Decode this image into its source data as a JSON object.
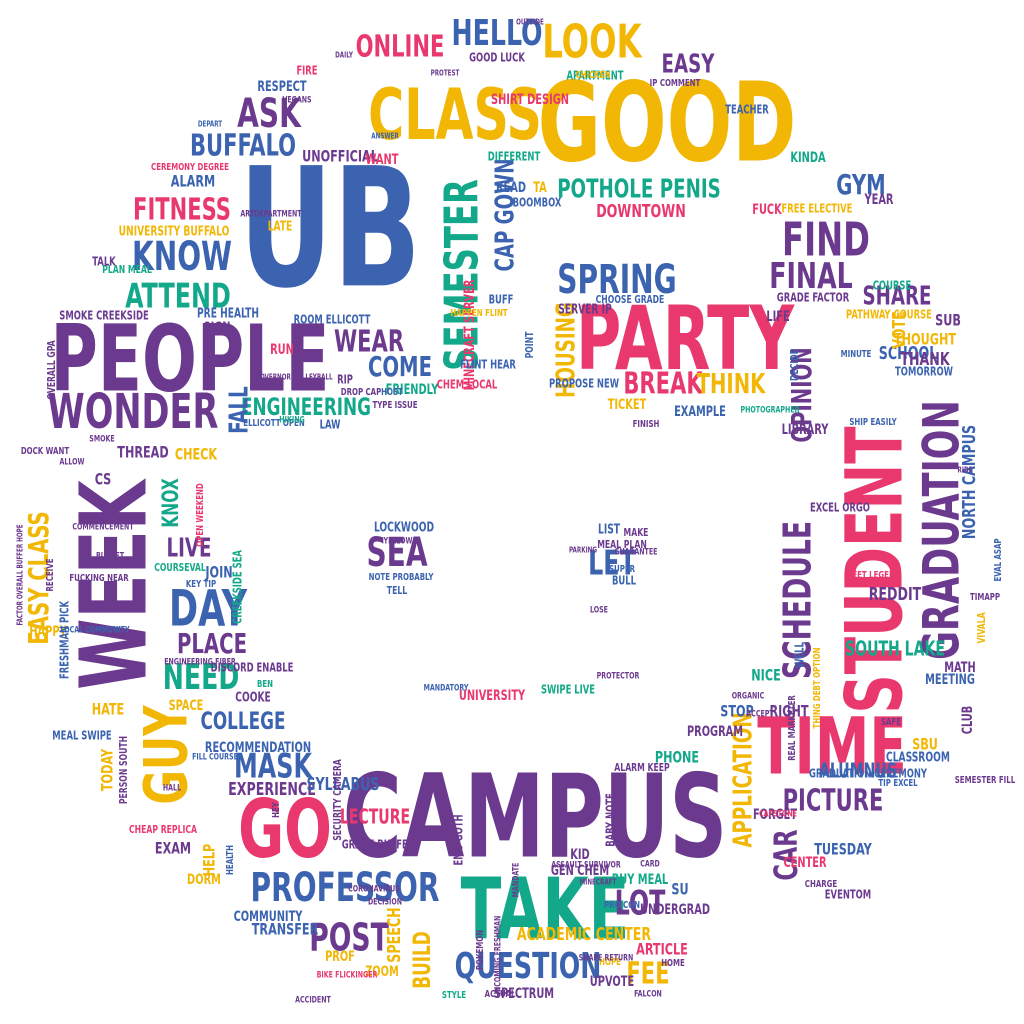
{
  "colors": {
    "purple": "#6b3a8e",
    "blue": "#3b63b0",
    "yellow": "#f2b705",
    "pink": "#e8386d",
    "green": "#13a88a"
  },
  "words": [
    {
      "text": "CAMPUS",
      "color": "purple"
    },
    {
      "text": "UB",
      "color": "blue"
    },
    {
      "text": "GOOD",
      "color": "yellow"
    },
    {
      "text": "STUDENT",
      "color": "pink"
    },
    {
      "text": "PEOPLE",
      "color": "purple"
    },
    {
      "text": "PARTY",
      "color": "pink"
    },
    {
      "text": "WEEK",
      "color": "purple"
    },
    {
      "text": "TAKE",
      "color": "green"
    },
    {
      "text": "CLASS",
      "color": "yellow"
    },
    {
      "text": "TIME",
      "color": "pink"
    },
    {
      "text": "GO",
      "color": "pink"
    },
    {
      "text": "GUY",
      "color": "yellow"
    },
    {
      "text": "SEMESTER",
      "color": "green"
    },
    {
      "text": "GRADUATION",
      "color": "purple"
    },
    {
      "text": "WONDER",
      "color": "purple"
    },
    {
      "text": "PROFESSOR",
      "color": "blue"
    },
    {
      "text": "LOOK",
      "color": "yellow"
    },
    {
      "text": "DAY",
      "color": "blue"
    },
    {
      "text": "SCHEDULE",
      "color": "purple"
    },
    {
      "text": "HELLO",
      "color": "blue"
    },
    {
      "text": "ONLINE",
      "color": "pink"
    },
    {
      "text": "FIND",
      "color": "purple"
    },
    {
      "text": "FINAL",
      "color": "purple"
    },
    {
      "text": "SPRING",
      "color": "blue"
    },
    {
      "text": "POTHOLE PENIS",
      "color": "green"
    },
    {
      "text": "KNOW",
      "color": "blue"
    },
    {
      "text": "ATTEND",
      "color": "green"
    },
    {
      "text": "FITNESS",
      "color": "pink"
    },
    {
      "text": "BUFFALO",
      "color": "blue"
    },
    {
      "text": "ASK",
      "color": "purple"
    },
    {
      "text": "QUESTION",
      "color": "blue"
    },
    {
      "text": "POST",
      "color": "purple"
    },
    {
      "text": "MASK",
      "color": "blue"
    },
    {
      "text": "NEED",
      "color": "green"
    },
    {
      "text": "PLACE",
      "color": "purple"
    },
    {
      "text": "APPLICATION",
      "color": "yellow"
    },
    {
      "text": "PICTURE",
      "color": "purple"
    },
    {
      "text": "CAR",
      "color": "purple"
    },
    {
      "text": "FEE",
      "color": "yellow"
    },
    {
      "text": "LOT",
      "color": "purple"
    },
    {
      "text": "SEA",
      "color": "purple"
    },
    {
      "text": "LET",
      "color": "blue"
    },
    {
      "text": "HOUSING",
      "color": "yellow"
    },
    {
      "text": "BREAK",
      "color": "pink"
    },
    {
      "text": "THINK",
      "color": "yellow"
    },
    {
      "text": "OPINION",
      "color": "purple"
    },
    {
      "text": "WEAR",
      "color": "purple"
    },
    {
      "text": "COME",
      "color": "blue"
    },
    {
      "text": "ENGINEERING",
      "color": "green"
    },
    {
      "text": "FALL",
      "color": "blue"
    },
    {
      "text": "EASY CLASS",
      "color": "yellow"
    },
    {
      "text": "KNOX",
      "color": "green"
    },
    {
      "text": "LIVE",
      "color": "purple"
    },
    {
      "text": "COLLEGE",
      "color": "blue"
    },
    {
      "text": "EXPERIENCE",
      "color": "purple"
    },
    {
      "text": "SYLLABUS",
      "color": "blue"
    },
    {
      "text": "LECTURE",
      "color": "pink"
    },
    {
      "text": "BUILD",
      "color": "yellow"
    },
    {
      "text": "SPEECH",
      "color": "yellow"
    },
    {
      "text": "ACADEMIC CENTER",
      "color": "yellow"
    },
    {
      "text": "UNIVERSITY",
      "color": "pink"
    },
    {
      "text": "SHARE",
      "color": "purple"
    },
    {
      "text": "SCHOOL",
      "color": "blue"
    },
    {
      "text": "GYM",
      "color": "blue"
    },
    {
      "text": "EASY",
      "color": "purple"
    },
    {
      "text": "CAP GOWN",
      "color": "blue"
    },
    {
      "text": "DOWNTOWN",
      "color": "pink"
    },
    {
      "text": "ALUMNUS",
      "color": "blue"
    },
    {
      "text": "SOUTH LAKE",
      "color": "green"
    },
    {
      "text": "NORTH CAMPUS",
      "color": "blue"
    },
    {
      "text": "REDDIT",
      "color": "purple"
    },
    {
      "text": "VOTE",
      "color": "yellow"
    },
    {
      "text": "SUB",
      "color": "purple"
    },
    {
      "text": "THANK",
      "color": "purple"
    },
    {
      "text": "THOUGHT",
      "color": "yellow"
    },
    {
      "text": "TUESDAY",
      "color": "blue"
    },
    {
      "text": "CENTER",
      "color": "pink"
    },
    {
      "text": "PHONE",
      "color": "green"
    },
    {
      "text": "STOP",
      "color": "blue"
    },
    {
      "text": "RIGHT",
      "color": "purple"
    },
    {
      "text": "NICE",
      "color": "green"
    },
    {
      "text": "PROGRAM",
      "color": "purple"
    },
    {
      "text": "CHECK",
      "color": "yellow"
    },
    {
      "text": "THREAD",
      "color": "purple"
    },
    {
      "text": "JOIN",
      "color": "blue"
    },
    {
      "text": "CS",
      "color": "purple"
    },
    {
      "text": "HAPPY",
      "color": "yellow"
    },
    {
      "text": "HATE",
      "color": "yellow"
    },
    {
      "text": "TODAY",
      "color": "yellow"
    },
    {
      "text": "EXAM",
      "color": "purple"
    },
    {
      "text": "HELP",
      "color": "yellow"
    },
    {
      "text": "DORM",
      "color": "yellow"
    },
    {
      "text": "COMMUNITY",
      "color": "blue"
    },
    {
      "text": "TRANSFER",
      "color": "blue"
    },
    {
      "text": "ZOOM",
      "color": "yellow"
    },
    {
      "text": "PROF",
      "color": "yellow"
    },
    {
      "text": "SPECTRUM",
      "color": "purple"
    },
    {
      "text": "UPVOTE",
      "color": "purple"
    },
    {
      "text": "ARTICLE",
      "color": "pink"
    },
    {
      "text": "SU",
      "color": "blue"
    },
    {
      "text": "UNDERGRAD",
      "color": "purple"
    },
    {
      "text": "BUY MEAL",
      "color": "green"
    },
    {
      "text": "GEN CHEM",
      "color": "purple"
    },
    {
      "text": "KID",
      "color": "purple"
    },
    {
      "text": "ALARM",
      "color": "blue"
    },
    {
      "text": "UNIVERSITY BUFFALO",
      "color": "yellow"
    },
    {
      "text": "UNOFFICIAL",
      "color": "purple"
    },
    {
      "text": "WANT",
      "color": "pink"
    },
    {
      "text": "RESPECT",
      "color": "blue"
    },
    {
      "text": "RUN",
      "color": "pink"
    },
    {
      "text": "SIGN",
      "color": "purple"
    },
    {
      "text": "PRE HEALTH",
      "color": "blue"
    },
    {
      "text": "MINECRAFT SERVER",
      "color": "pink"
    },
    {
      "text": "FRIENDLY",
      "color": "green"
    },
    {
      "text": "SERVER IP",
      "color": "purple"
    },
    {
      "text": "CHOOSE GRADE",
      "color": "blue"
    },
    {
      "text": "TICKET",
      "color": "yellow"
    },
    {
      "text": "EXAMPLE",
      "color": "blue"
    },
    {
      "text": "LIBRARY",
      "color": "purple"
    },
    {
      "text": "MEETING",
      "color": "blue"
    },
    {
      "text": "MATH",
      "color": "purple"
    },
    {
      "text": "CLUB",
      "color": "purple"
    },
    {
      "text": "SBU",
      "color": "yellow"
    },
    {
      "text": "FORGET",
      "color": "purple"
    },
    {
      "text": "RECOMMENDATION",
      "color": "blue"
    },
    {
      "text": "LOCKWOOD",
      "color": "blue"
    },
    {
      "text": "LIST",
      "color": "blue"
    },
    {
      "text": "MAKE",
      "color": "purple"
    },
    {
      "text": "MEAL PLAN",
      "color": "purple"
    },
    {
      "text": "YELLOW",
      "color": "purple"
    },
    {
      "text": "SUPER",
      "color": "blue"
    },
    {
      "text": "BULL",
      "color": "blue"
    },
    {
      "text": "TELL",
      "color": "blue"
    },
    {
      "text": "SWIPE LIVE",
      "color": "green"
    },
    {
      "text": "BUFF",
      "color": "blue"
    },
    {
      "text": "READ",
      "color": "blue"
    },
    {
      "text": "BOOMBOX",
      "color": "blue"
    },
    {
      "text": "DIFFERENT",
      "color": "green"
    },
    {
      "text": "EXCEL ORGO",
      "color": "purple"
    },
    {
      "text": "TA",
      "color": "yellow"
    },
    {
      "text": "KINDA",
      "color": "green"
    },
    {
      "text": "TEACHER",
      "color": "blue"
    },
    {
      "text": "APARTMENT",
      "color": "green"
    },
    {
      "text": "SHIRT DESIGN",
      "color": "pink"
    },
    {
      "text": "FIRE",
      "color": "pink"
    },
    {
      "text": "GOOD LUCK",
      "color": "purple"
    },
    {
      "text": "CHICKEN",
      "color": "yellow"
    },
    {
      "text": "IP COMMENT",
      "color": "purple"
    },
    {
      "text": "FUCK",
      "color": "pink"
    },
    {
      "text": "FREE ELECTIVE",
      "color": "yellow"
    },
    {
      "text": "YEAR",
      "color": "purple"
    },
    {
      "text": "LIFE",
      "color": "purple"
    },
    {
      "text": "PATHWAY COURSE",
      "color": "yellow"
    },
    {
      "text": "TOMORROW",
      "color": "blue"
    },
    {
      "text": "COURSE",
      "color": "green"
    },
    {
      "text": "MINUTE",
      "color": "blue"
    },
    {
      "text": "GRADE FACTOR",
      "color": "purple"
    },
    {
      "text": "LAW",
      "color": "blue"
    },
    {
      "text": "DAILY",
      "color": "purple"
    },
    {
      "text": "DEPART",
      "color": "blue"
    },
    {
      "text": "OUTSIDE",
      "color": "purple"
    },
    {
      "text": "CEREMONY DEGREE",
      "color": "pink"
    },
    {
      "text": "LATE",
      "color": "yellow"
    },
    {
      "text": "SMOKE CREEKSIDE",
      "color": "purple"
    },
    {
      "text": "PLAN MEAL",
      "color": "green"
    },
    {
      "text": "TALK",
      "color": "purple"
    },
    {
      "text": "ROOM ELLICOTT",
      "color": "blue"
    },
    {
      "text": "OVERALL GPA",
      "color": "purple"
    },
    {
      "text": "RIP",
      "color": "purple"
    },
    {
      "text": "CHEM LOCAL",
      "color": "pink"
    },
    {
      "text": "DOCK WANT",
      "color": "purple"
    },
    {
      "text": "FRESHMAN PICK",
      "color": "blue"
    },
    {
      "text": "MEAL SWIPE",
      "color": "blue"
    },
    {
      "text": "PERSON SOUTH",
      "color": "purple"
    },
    {
      "text": "CHEAP REPLICA",
      "color": "pink"
    },
    {
      "text": "CREEKSIDE SEA",
      "color": "green"
    },
    {
      "text": "OPEN WEEKEND",
      "color": "pink"
    },
    {
      "text": "COURSEVAL",
      "color": "green"
    },
    {
      "text": "KEY TIP",
      "color": "blue"
    },
    {
      "text": "FUCKING NEAR",
      "color": "purple"
    },
    {
      "text": "DISCORD ENABLE",
      "color": "purple"
    },
    {
      "text": "BEN",
      "color": "green"
    },
    {
      "text": "COOKE",
      "color": "purple"
    },
    {
      "text": "SPACE",
      "color": "yellow"
    },
    {
      "text": "HALL",
      "color": "purple"
    },
    {
      "text": "SECURITY CAMERA",
      "color": "purple"
    },
    {
      "text": "GRADE BUFFER",
      "color": "purple"
    },
    {
      "text": "EMO GOTH",
      "color": "purple"
    },
    {
      "text": "BABY NOTE",
      "color": "purple"
    },
    {
      "text": "ALARM KEEP",
      "color": "purple"
    },
    {
      "text": "GRADUATION CEREMONY",
      "color": "blue"
    },
    {
      "text": "TIP EXCEL",
      "color": "blue"
    },
    {
      "text": "CHARGE",
      "color": "purple"
    },
    {
      "text": "EVENTOM",
      "color": "purple"
    },
    {
      "text": "SAFE",
      "color": "purple"
    },
    {
      "text": "CLASSROOM",
      "color": "blue"
    },
    {
      "text": "WELL",
      "color": "blue"
    },
    {
      "text": "MEET LEGEND",
      "color": "pink"
    },
    {
      "text": "THING DEBT OPTION",
      "color": "yellow"
    },
    {
      "text": "SEMESTER FILL",
      "color": "purple"
    },
    {
      "text": "VIVALA",
      "color": "yellow"
    },
    {
      "text": "EVAL ASAP",
      "color": "blue"
    },
    {
      "text": "NOTE PROBABLY",
      "color": "blue"
    },
    {
      "text": "HAPPEN FLINT",
      "color": "yellow"
    },
    {
      "text": "FLINT HEAR",
      "color": "blue"
    },
    {
      "text": "POINT",
      "color": "blue"
    },
    {
      "text": "PROPOSE NEW",
      "color": "blue"
    },
    {
      "text": "FINISH",
      "color": "purple"
    },
    {
      "text": "DECIDE",
      "color": "blue"
    },
    {
      "text": "ELLICOTT OPEN",
      "color": "blue"
    },
    {
      "text": "HIKING",
      "color": "green"
    },
    {
      "text": "DROP CAP",
      "color": "purple"
    },
    {
      "text": "HOST",
      "color": "blue"
    },
    {
      "text": "TYPE ISSUE",
      "color": "purple"
    },
    {
      "text": "HEALTH",
      "color": "blue"
    },
    {
      "text": "LOCAL COMMUNITY",
      "color": "blue"
    },
    {
      "text": "BUCKET",
      "color": "purple"
    },
    {
      "text": "COMMENCEMENT",
      "color": "purple"
    },
    {
      "text": "MANDATORY",
      "color": "blue"
    },
    {
      "text": "PROTECTOR",
      "color": "purple"
    },
    {
      "text": "MANDATE",
      "color": "purple"
    },
    {
      "text": "ASSAULT SURVIVOR",
      "color": "purple"
    },
    {
      "text": "MINECRAFT",
      "color": "purple"
    },
    {
      "text": "CARD",
      "color": "purple"
    },
    {
      "text": "PRO CON",
      "color": "blue"
    },
    {
      "text": "STYLE",
      "color": "green"
    },
    {
      "text": "ACTUAL",
      "color": "purple"
    },
    {
      "text": "HOPE",
      "color": "yellow"
    },
    {
      "text": "HOME",
      "color": "purple"
    },
    {
      "text": "FALCON",
      "color": "purple"
    },
    {
      "text": "REAL MARKETER",
      "color": "purple"
    },
    {
      "text": "CAPSTONE",
      "color": "pink"
    },
    {
      "text": "ACCEPT",
      "color": "purple"
    },
    {
      "text": "ORGANIC",
      "color": "purple"
    },
    {
      "text": "TIMAPP",
      "color": "purple"
    },
    {
      "text": "SHIP EASILY",
      "color": "blue"
    },
    {
      "text": "PHOTOGRAPHER",
      "color": "green"
    },
    {
      "text": "GUARANTEE",
      "color": "purple"
    },
    {
      "text": "PARKING",
      "color": "purple"
    },
    {
      "text": "LOSE",
      "color": "purple"
    },
    {
      "text": "DECISION",
      "color": "purple"
    },
    {
      "text": "SHAPE RETURN",
      "color": "purple"
    },
    {
      "text": "POKEMON",
      "color": "purple"
    },
    {
      "text": "INCOMING FRESHMAN",
      "color": "purple"
    },
    {
      "text": "BIKE FLICKINGER",
      "color": "pink"
    },
    {
      "text": "ACCIDENT",
      "color": "purple"
    },
    {
      "text": "HEY",
      "color": "purple"
    },
    {
      "text": "FILL COURSE",
      "color": "blue"
    },
    {
      "text": "CORONAVIRUS",
      "color": "purple"
    },
    {
      "text": "VEGANS",
      "color": "purple"
    },
    {
      "text": "ARTDEPARTMENT",
      "color": "purple"
    },
    {
      "text": "SMOKE",
      "color": "purple"
    },
    {
      "text": "ALLOW",
      "color": "purple"
    },
    {
      "text": "ANSWER",
      "color": "blue"
    },
    {
      "text": "PAY",
      "color": "purple"
    },
    {
      "text": "RIDE",
      "color": "purple"
    },
    {
      "text": "RECEIVE",
      "color": "purple"
    },
    {
      "text": "FACTOR OVERALL BUFFER HOPE",
      "color": "purple"
    },
    {
      "text": "GOVERNOR VOLLEYBALL",
      "color": "purple"
    },
    {
      "text": "ENGINEERING FIBER",
      "color": "purple"
    },
    {
      "text": "PROTEST",
      "color": "purple"
    },
    {
      "text": "PROBABLY FUCKING",
      "color": "purple"
    }
  ]
}
